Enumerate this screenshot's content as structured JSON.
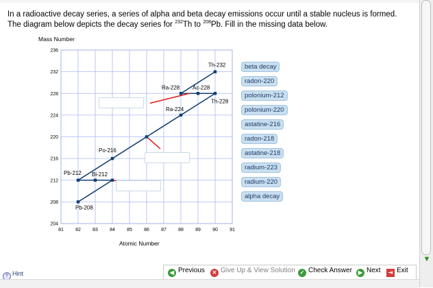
{
  "instructions": {
    "part1": "In a radioactive decay series, a series of alpha and beta decay emissions occur until a stable nucleus is formed. The diagram below depicts the decay series for ",
    "start_mass": "232",
    "start_symbol": "Th to ",
    "end_mass": "208",
    "end_symbol": "Pb. Fill in the missing data below."
  },
  "chart_data": {
    "type": "scatter",
    "xlabel": "Atomic Number",
    "ylabel": "Mass Number",
    "xlim": [
      81,
      91
    ],
    "ylim": [
      204,
      236
    ],
    "xticks": [
      "81",
      "82",
      "83",
      "84",
      "85",
      "86",
      "87",
      "88",
      "89",
      "90",
      "91"
    ],
    "yticks": [
      "204",
      "208",
      "212",
      "216",
      "220",
      "224",
      "228",
      "232",
      "236"
    ],
    "grid": true,
    "line_color": "#123f73",
    "connector_color": "#e01a1a",
    "points": [
      {
        "label": "Th-232",
        "x": 90,
        "y": 232
      },
      {
        "label": "Ra-228",
        "x": 88,
        "y": 228
      },
      {
        "label": "Ac-228",
        "x": 89,
        "y": 228
      },
      {
        "label": "Th-228",
        "x": 90,
        "y": 228
      },
      {
        "label": "Ra-224",
        "x": 88,
        "y": 224
      },
      {
        "label": "",
        "x": 86,
        "y": 220
      },
      {
        "label": "Po-216",
        "x": 84,
        "y": 216
      },
      {
        "label": "Pb-212",
        "x": 82,
        "y": 212
      },
      {
        "label": "Bi-212",
        "x": 83,
        "y": 212
      },
      {
        "label": "",
        "x": 84,
        "y": 212
      },
      {
        "label": "Pb-208",
        "x": 82,
        "y": 208
      }
    ],
    "segments": [
      [
        90,
        232,
        88,
        228
      ],
      [
        88,
        228,
        90,
        228
      ],
      [
        90,
        228,
        82,
        212
      ],
      [
        82,
        212,
        84,
        212
      ],
      [
        84,
        212,
        82,
        208
      ]
    ],
    "connectors": [
      [
        88.5,
        228,
        86.2,
        226.2
      ],
      [
        86,
        220,
        86.8,
        217.8
      ],
      [
        84,
        212,
        84.8,
        211.6
      ]
    ],
    "answer_slots": [
      {
        "x": 84.5,
        "y": 226.2
      },
      {
        "x": 87.2,
        "y": 216.2
      },
      {
        "x": 85.5,
        "y": 211.0
      }
    ]
  },
  "answer_labels": [
    "beta decay",
    "radon-220",
    "polonium-212",
    "polonium-220",
    "astatine-216",
    "radon-218",
    "astatine-218",
    "radium-223",
    "radium-220",
    "alpha decay"
  ],
  "footer": {
    "hint": "Hint",
    "previous": "Previous",
    "give_up": "Give Up & View Solution",
    "check": "Check Answer",
    "next": "Next",
    "exit": "Exit"
  }
}
